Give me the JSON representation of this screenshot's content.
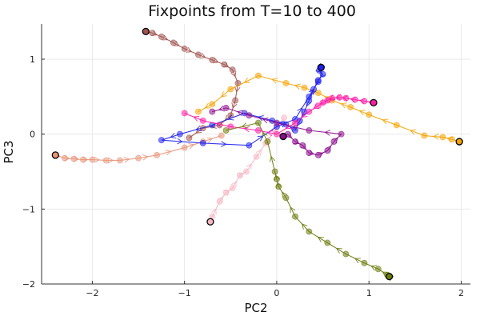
{
  "chart_data": {
    "type": "line",
    "title": "Fixpoints from T=10 to 400",
    "xlabel": "PC2",
    "ylabel": "PC3",
    "xlim": [
      -2.55,
      2.1
    ],
    "ylim": [
      -2.0,
      1.47
    ],
    "xticks": [
      -2,
      -1,
      0,
      1,
      2
    ],
    "yticks": [
      -2,
      -1,
      0,
      1
    ],
    "grid": true,
    "legend": "none",
    "series": [
      {
        "color": "#a0524d",
        "x": [
          -1.42,
          -1.35,
          -1.25,
          -1.12,
          -1.0,
          -0.85,
          -0.7,
          -0.57,
          -0.48,
          -0.42,
          -0.45,
          -0.5,
          -0.62,
          -0.8,
          -0.95
        ],
        "y": [
          1.37,
          1.35,
          1.3,
          1.22,
          1.14,
          1.06,
          0.99,
          0.93,
          0.86,
          0.68,
          0.45,
          0.25,
          0.12,
          0.08,
          -0.05
        ]
      },
      {
        "color": "#e8957a",
        "x": [
          -2.4,
          -2.3,
          -2.2,
          -2.1,
          -2.0,
          -1.85,
          -1.7,
          -1.5,
          -1.3,
          -1.0,
          -0.8,
          -0.6
        ],
        "y": [
          -0.28,
          -0.32,
          -0.33,
          -0.34,
          -0.34,
          -0.35,
          -0.35,
          -0.32,
          -0.28,
          -0.18,
          -0.1,
          -0.02
        ]
      },
      {
        "color": "#f7b6c2",
        "x": [
          -0.72,
          -0.7,
          -0.62,
          -0.55,
          -0.48,
          -0.4,
          -0.33,
          -0.22,
          -0.12,
          -0.02,
          0.08
        ],
        "y": [
          -1.17,
          -1.1,
          -0.9,
          -0.78,
          -0.72,
          -0.55,
          -0.5,
          -0.3,
          -0.12,
          0.05,
          0.22
        ]
      },
      {
        "color": "#f5a300",
        "x": [
          1.98,
          1.9,
          1.8,
          1.6,
          1.3,
          1.0,
          0.8,
          0.6,
          0.45,
          0.3,
          0.1,
          -0.2,
          -0.5,
          -0.7,
          -0.85
        ],
        "y": [
          -0.1,
          -0.07,
          -0.04,
          -0.02,
          0.12,
          0.26,
          0.36,
          0.45,
          0.55,
          0.62,
          0.68,
          0.78,
          0.6,
          0.4,
          0.3
        ]
      },
      {
        "color": "#2020ee",
        "x": [
          0.48,
          0.46,
          0.5,
          0.45,
          0.4,
          0.35,
          0.3,
          0.25,
          0.2,
          0.1,
          -0.05,
          -0.35,
          -0.7,
          -1.05,
          -1.25,
          -0.8,
          -0.3,
          0.0,
          0.2,
          0.35,
          0.45
        ],
        "y": [
          0.89,
          0.85,
          0.8,
          0.72,
          0.6,
          0.45,
          0.3,
          0.18,
          0.05,
          0.13,
          0.18,
          0.28,
          0.12,
          0.0,
          -0.08,
          -0.12,
          -0.15,
          0.1,
          0.2,
          0.5,
          0.7
        ]
      },
      {
        "color": "#ff1aa5",
        "x": [
          1.05,
          0.95,
          0.85,
          0.75,
          0.68,
          0.6,
          0.55,
          0.5,
          0.45,
          0.35,
          0.2,
          0.0,
          -0.2,
          -0.5,
          -0.8,
          -1.0
        ],
        "y": [
          0.42,
          0.44,
          0.46,
          0.48,
          0.49,
          0.48,
          0.45,
          0.42,
          0.38,
          0.3,
          0.15,
          0.0,
          0.05,
          0.1,
          0.18,
          0.28
        ]
      },
      {
        "color": "#8b0a8b",
        "x": [
          0.07,
          0.12,
          0.2,
          0.28,
          0.35,
          0.45,
          0.55,
          0.62,
          0.7,
          0.35,
          0.0,
          -0.3,
          -0.55,
          -0.7
        ],
        "y": [
          -0.03,
          0.0,
          -0.1,
          -0.15,
          -0.25,
          -0.28,
          -0.22,
          -0.1,
          0.0,
          0.05,
          0.15,
          0.25,
          0.35,
          0.3
        ]
      },
      {
        "color": "#6b7a0a",
        "x": [
          1.22,
          1.2,
          1.1,
          0.95,
          0.75,
          0.55,
          0.35,
          0.2,
          0.1,
          0.02,
          0.0,
          -0.02,
          -0.1,
          -0.2,
          -0.55
        ],
        "y": [
          -1.9,
          -1.88,
          -1.8,
          -1.72,
          -1.6,
          -1.45,
          -1.3,
          -1.1,
          -0.85,
          -0.7,
          -0.6,
          -0.5,
          -0.1,
          0.15,
          0.05
        ]
      }
    ],
    "start_markers": [
      {
        "color": "#a0524d",
        "x": -1.42,
        "y": 1.37
      },
      {
        "color": "#e8957a",
        "x": -2.4,
        "y": -0.28
      },
      {
        "color": "#f7b6c2",
        "x": -0.72,
        "y": -1.17
      },
      {
        "color": "#f5a300",
        "x": 1.98,
        "y": -0.1
      },
      {
        "color": "#2020ee",
        "x": 0.48,
        "y": 0.89
      },
      {
        "color": "#ff1aa5",
        "x": 1.05,
        "y": 0.42
      },
      {
        "color": "#8b0a8b",
        "x": 0.07,
        "y": -0.03
      },
      {
        "color": "#6b7a0a",
        "x": 1.22,
        "y": -1.9
      }
    ]
  }
}
